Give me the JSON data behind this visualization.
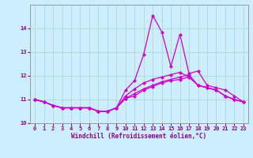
{
  "background_color": "#cceeff",
  "line_color": "#cc00cc",
  "x": [
    0,
    1,
    2,
    3,
    4,
    5,
    6,
    7,
    8,
    9,
    10,
    11,
    12,
    13,
    14,
    15,
    16,
    17,
    18,
    19,
    20,
    21,
    22,
    23
  ],
  "lines": [
    [
      11.0,
      10.9,
      10.75,
      10.65,
      10.65,
      10.65,
      10.65,
      10.5,
      10.5,
      10.65,
      11.05,
      11.15,
      11.4,
      11.55,
      11.7,
      11.8,
      11.85,
      11.95,
      11.6,
      11.5,
      11.4,
      11.15,
      11.0,
      10.9
    ],
    [
      11.0,
      10.9,
      10.75,
      10.65,
      10.65,
      10.65,
      10.65,
      10.5,
      10.5,
      10.65,
      11.4,
      11.8,
      12.9,
      14.55,
      13.85,
      12.4,
      13.75,
      12.1,
      12.2,
      11.6,
      11.5,
      11.4,
      11.15,
      10.9
    ],
    [
      11.0,
      10.9,
      10.75,
      10.65,
      10.65,
      10.65,
      10.65,
      10.5,
      10.5,
      10.65,
      11.15,
      11.45,
      11.7,
      11.85,
      11.95,
      12.05,
      12.15,
      11.95,
      11.6,
      11.5,
      11.4,
      11.15,
      11.0,
      10.9
    ],
    [
      11.0,
      10.9,
      10.75,
      10.65,
      10.65,
      10.65,
      10.65,
      10.5,
      10.5,
      10.65,
      11.05,
      11.25,
      11.45,
      11.6,
      11.75,
      11.85,
      11.95,
      12.05,
      11.6,
      11.5,
      11.4,
      11.15,
      11.0,
      10.9
    ]
  ],
  "ylim": [
    10.0,
    15.0
  ],
  "xlim": [
    -0.5,
    23.5
  ],
  "yticks": [
    10,
    11,
    12,
    13,
    14
  ],
  "xticks": [
    0,
    1,
    2,
    3,
    4,
    5,
    6,
    7,
    8,
    9,
    10,
    11,
    12,
    13,
    14,
    15,
    16,
    17,
    18,
    19,
    20,
    21,
    22,
    23
  ],
  "xlabel": "Windchill (Refroidissement éolien,°C)",
  "grid_color": "#aaddcc",
  "marker": "D",
  "markersize": 2,
  "linewidth": 0.9,
  "tick_color": "#880088",
  "label_color": "#880088",
  "xlabel_fontsize": 5.5,
  "tick_fontsize": 5.0
}
